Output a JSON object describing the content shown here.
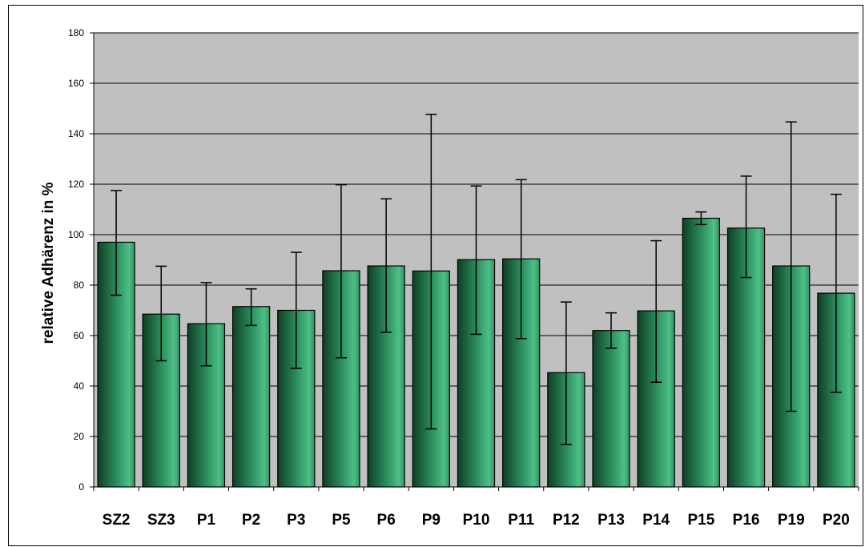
{
  "chart_data": {
    "type": "bar",
    "title": "",
    "xlabel": "",
    "ylabel": "relative Adhärenz in %",
    "ylim": [
      0,
      180
    ],
    "yticks": [
      0,
      20,
      40,
      60,
      80,
      100,
      120,
      140,
      160,
      180
    ],
    "grid": true,
    "legend": "none",
    "categories": [
      "SZ2",
      "SZ3",
      "P1",
      "P2",
      "P3",
      "P5",
      "P6",
      "P9",
      "P10",
      "P11",
      "P12",
      "P13",
      "P14",
      "P15",
      "P16",
      "P19",
      "P20"
    ],
    "values": [
      97,
      68.5,
      64.7,
      71.5,
      70,
      85.7,
      87.6,
      85.6,
      90.1,
      90.4,
      45.3,
      62,
      69.8,
      106.5,
      102.6,
      87.6,
      76.8
    ],
    "error_low": [
      76,
      50,
      48,
      64,
      47,
      51.2,
      61.3,
      23,
      60.5,
      58.8,
      16.8,
      55,
      41.5,
      104,
      83,
      30,
      37.5
    ],
    "error_high": [
      117.5,
      87.5,
      81,
      78.5,
      93,
      119.8,
      114.2,
      147.7,
      119.3,
      121.8,
      73.3,
      69,
      97.6,
      109,
      123.2,
      144.7,
      116
    ],
    "colors": {
      "plot_bg": "#c0c0c0",
      "bar_dark": "#0f3f26",
      "bar_mid": "#2e9462",
      "bar_light": "#4fbf87",
      "gridline": "#000000"
    }
  }
}
